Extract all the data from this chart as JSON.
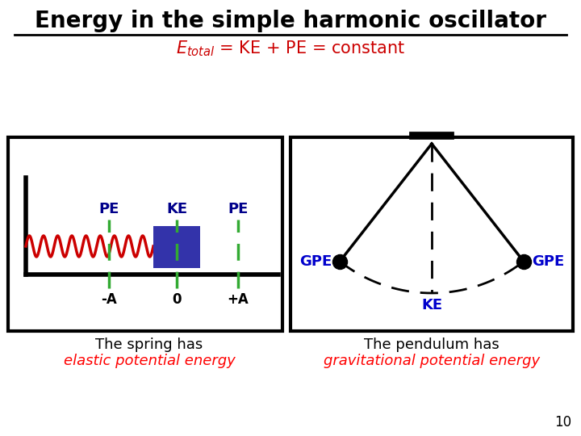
{
  "title": "Energy in the simple harmonic oscillator",
  "bg_color": "#ffffff",
  "title_color": "#000000",
  "subtitle_color": "#cc0000",
  "label_color": "#00008B",
  "spring_color": "#cc0000",
  "block_color": "#3333aa",
  "dashed_green": "#33aa33",
  "gpe_label_color": "#0000cc",
  "ke_label_color": "#0000cc",
  "page_num": "10",
  "spring_text_top": "The spring has",
  "spring_text_bot": "elastic potential energy",
  "pendulum_text_top": "The pendulum has",
  "pendulum_text_bot": "gravitational potential energy"
}
